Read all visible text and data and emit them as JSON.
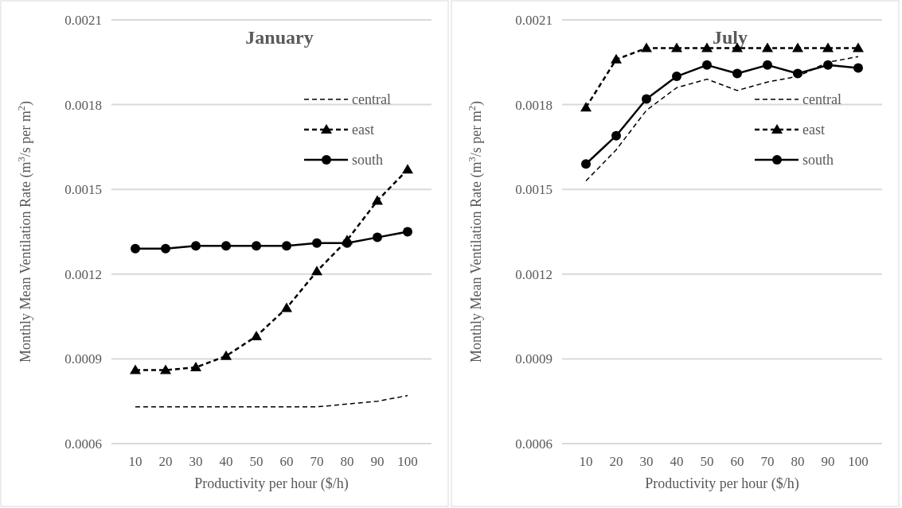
{
  "chart_data": [
    {
      "type": "line",
      "title": "January",
      "xlabel": "Productivity per hour ($/h)",
      "ylabel": "Monthly Mean Ventilation Rate (m$^{3}$/s per m$^{2}$)",
      "categories": [
        "10",
        "20",
        "30",
        "40",
        "50",
        "60",
        "70",
        "80",
        "90",
        "100"
      ],
      "ylim": [
        0.0006,
        0.0021
      ],
      "yticks": [
        0.0006,
        0.0009,
        0.0012,
        0.0015,
        0.0018,
        0.0021
      ],
      "grid": "y",
      "legend": "top right",
      "series": [
        {
          "name": "central",
          "color": "#000000",
          "line_style": "dashed",
          "marker": "none",
          "values": [
            0.00073,
            0.00073,
            0.00073,
            0.00073,
            0.00073,
            0.00073,
            0.00073,
            0.00074,
            0.00075,
            0.00077
          ]
        },
        {
          "name": "east",
          "color": "#000000",
          "line_style": "dashed",
          "marker": "triangle",
          "values": [
            0.00086,
            0.00086,
            0.00087,
            0.00091,
            0.00098,
            0.00108,
            0.00121,
            0.00132,
            0.00146,
            0.00157
          ]
        },
        {
          "name": "south",
          "color": "#000000",
          "line_style": "solid",
          "marker": "circle",
          "values": [
            0.00129,
            0.00129,
            0.0013,
            0.0013,
            0.0013,
            0.0013,
            0.00131,
            0.00131,
            0.00133,
            0.00135
          ]
        }
      ]
    },
    {
      "type": "line",
      "title": "July",
      "xlabel": "Productivity per hour ($/h)",
      "ylabel": "Monthly Mean Ventilation Rate (m$^{3}$/s per m$^{2}$)",
      "categories": [
        "10",
        "20",
        "30",
        "40",
        "50",
        "60",
        "70",
        "80",
        "90",
        "100"
      ],
      "ylim": [
        0.0006,
        0.0021
      ],
      "yticks": [
        0.0006,
        0.0009,
        0.0012,
        0.0015,
        0.0018,
        0.0021
      ],
      "grid": "y",
      "legend": "top right",
      "series": [
        {
          "name": "central",
          "color": "#000000",
          "line_style": "dashed",
          "marker": "none",
          "values": [
            0.00153,
            0.00164,
            0.00178,
            0.00186,
            0.00189,
            0.00185,
            0.00188,
            0.0019,
            0.00195,
            0.00197
          ]
        },
        {
          "name": "east",
          "color": "#000000",
          "line_style": "dashed",
          "marker": "triangle",
          "values": [
            0.00179,
            0.00196,
            0.002,
            0.002,
            0.002,
            0.002,
            0.002,
            0.002,
            0.002,
            0.002
          ]
        },
        {
          "name": "south",
          "color": "#000000",
          "line_style": "solid",
          "marker": "circle",
          "values": [
            0.00159,
            0.00169,
            0.00182,
            0.0019,
            0.00194,
            0.00191,
            0.00194,
            0.00191,
            0.00194,
            0.00193
          ]
        }
      ]
    }
  ]
}
